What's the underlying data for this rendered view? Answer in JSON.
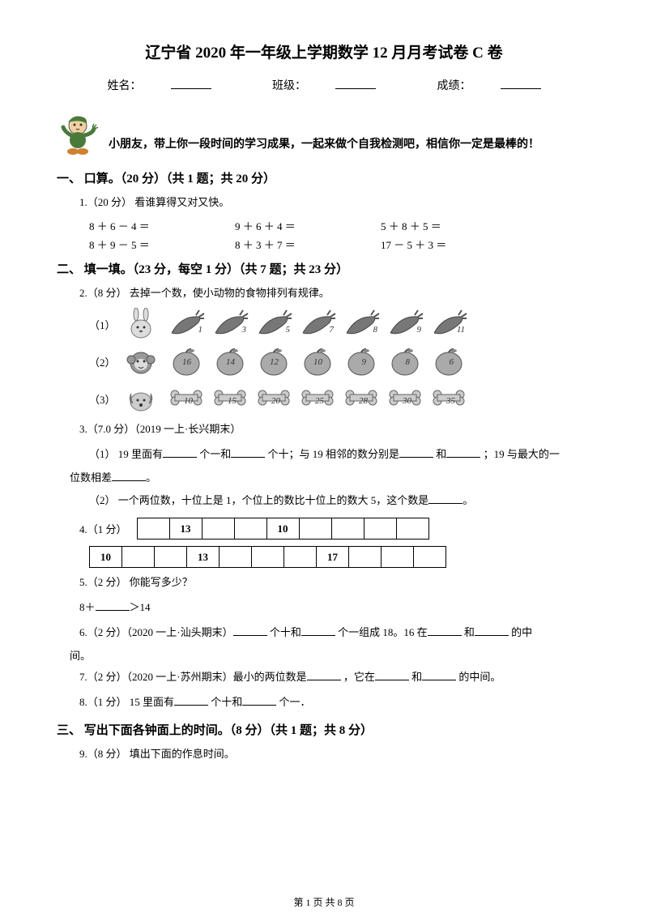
{
  "title": "辽宁省 2020 年一年级上学期数学 12 月月考试卷 C 卷",
  "info": {
    "name": "姓名：",
    "class": "班级：",
    "score": "成绩："
  },
  "intro": "小朋友，带上你一段时间的学习成果，一起来做个自我检测吧，相信你一定是最棒的！",
  "sec1": {
    "heading": "一、 口算。（20 分）（共 1 题；共 20 分）"
  },
  "q1": {
    "label": "1.（20 分） 看谁算得又对又快。",
    "row1": {
      "a": "8 ＋ 6 － 4 ＝",
      "b": "9 ＋ 6 ＋ 4 ＝",
      "c": "5 ＋ 8 ＋ 5 ＝"
    },
    "row2": {
      "a": "8 ＋ 9 － 5 ＝",
      "b": "8 ＋ 3 ＋ 7 ＝",
      "c": "17 － 5 ＋ 3 ＝"
    }
  },
  "sec2": {
    "heading": "二、 填一填。（23 分，每空 1 分）（共 7 题；共 23 分）"
  },
  "q2": {
    "label": "2.（8 分） 去掉一个数，使小动物的食物排列有规律。",
    "r1": {
      "lab": "（1）",
      "nums": [
        "1",
        "3",
        "5",
        "7",
        "8",
        "9",
        "11"
      ]
    },
    "r2": {
      "lab": "（2）",
      "nums": [
        "16",
        "14",
        "12",
        "10",
        "9",
        "8",
        "6"
      ]
    },
    "r3": {
      "lab": "（3）",
      "nums": [
        "10",
        "15",
        "20",
        "25",
        "28",
        "30",
        "35"
      ]
    }
  },
  "q3": {
    "label": "3.（7.0 分）（2019 一上·长兴期末）",
    "p1a": "（1） 19 里面有",
    "p1b": "个一和",
    "p1c": "个十；与 19 相邻的数分别是",
    "p1d": "和",
    "p1e": "；19 与最大的一",
    "p1f": "位数相差",
    "p1g": "。",
    "p2a": "（2） 一个两位数，十位上是 1，个位上的数比十位上的数大 5，这个数是",
    "p2b": "。"
  },
  "q4": {
    "label": "4.（1 分）",
    "row1": [
      "",
      "13",
      "",
      "",
      "10",
      "",
      "",
      "",
      ""
    ],
    "row2": [
      "10",
      "",
      "",
      "13",
      "",
      "",
      "",
      "17",
      "",
      "",
      ""
    ]
  },
  "q5": {
    "label": "5.（2 分） 你能写多少？",
    "eq": "8＋",
    "gt": "＞14"
  },
  "q6": {
    "a": "6.（2 分）（2020 一上·汕头期末）",
    "b": "个十和",
    "c": "个一组成 18。16 在",
    "d": "和",
    "e": "的中",
    "f": "间。"
  },
  "q7": {
    "a": "7.（2 分）（2020 一上·苏州期末）最小的两位数是",
    "b": "，它在",
    "c": "和",
    "d": "的中间。"
  },
  "q8": {
    "a": "8.（1 分） 15 里面有",
    "b": "个十和",
    "c": "个一．"
  },
  "sec3": {
    "heading": "三、 写出下面各钟面上的时间。（8 分）（共 1 题；共 8 分）"
  },
  "q9": {
    "label": "9.（8 分） 填出下面的作息时间。"
  },
  "footer": "第 1 页 共 8 页",
  "colors": {
    "carrot": "#6b6b6b",
    "apple": "#888888",
    "bone": "#999999",
    "rabbit": "#bbbbbb",
    "monkey": "#8a8a8a",
    "dog": "#aaaaaa"
  }
}
